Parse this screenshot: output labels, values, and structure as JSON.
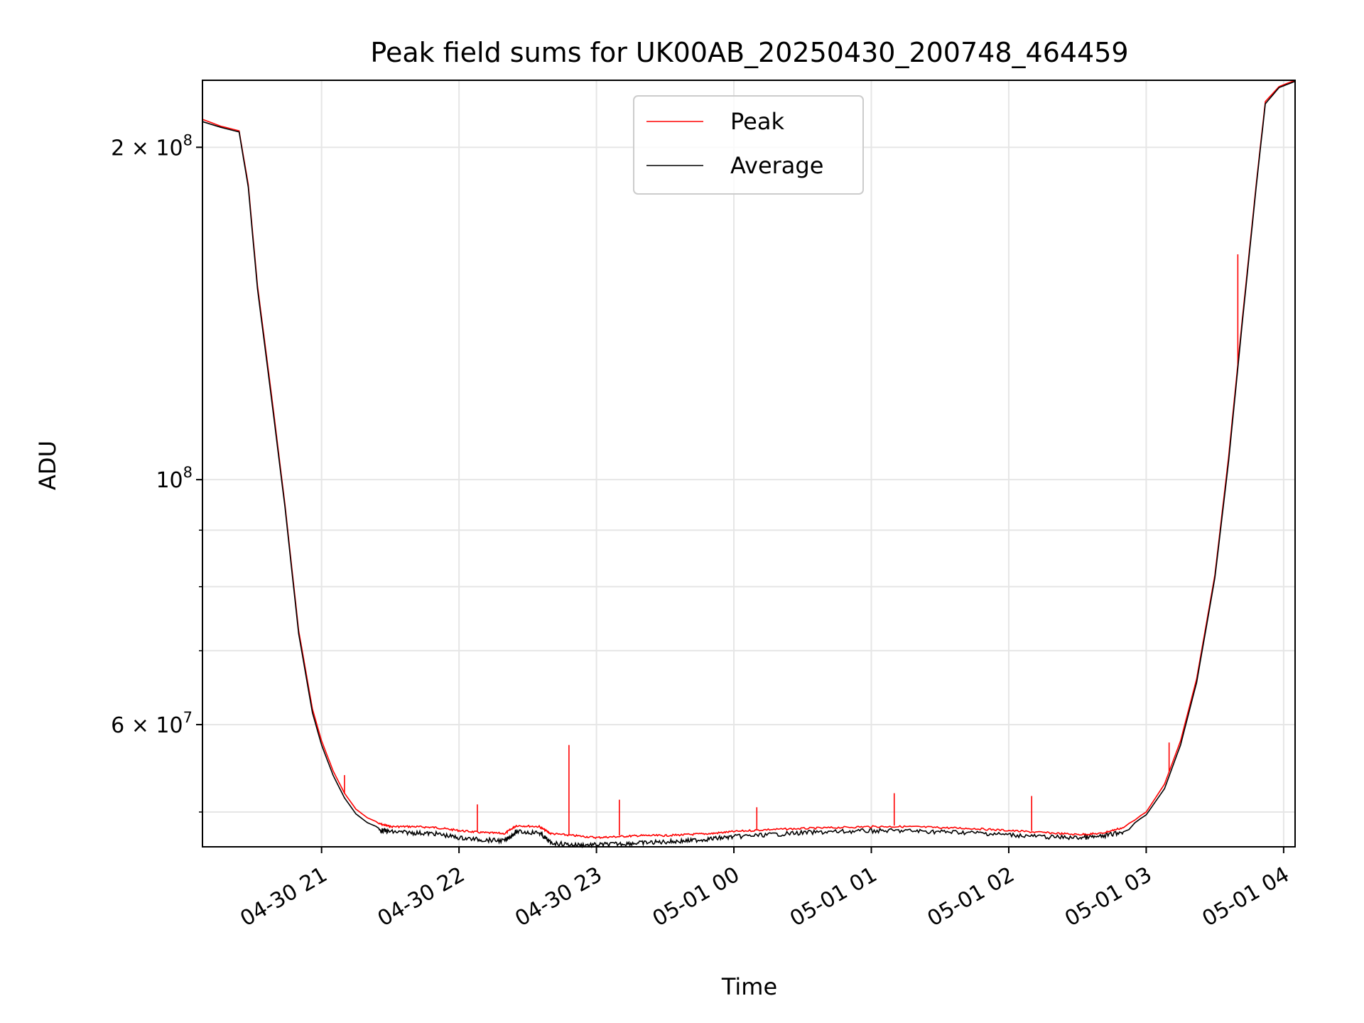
{
  "chart_data": {
    "type": "line",
    "title": "Peak field sums for UK00AB_20250430_200748_464459",
    "xlabel": "Time",
    "ylabel": "ADU",
    "y_scale": "log",
    "xlim": [
      "2025-04-30 20:08",
      "2025-05-01 04:05"
    ],
    "ylim": [
      46500000,
      230000000
    ],
    "grid": true,
    "legend": {
      "placement": "upper center"
    },
    "x_ticks": [
      {
        "t": "2025-04-30 21:00",
        "label": "04-30 21"
      },
      {
        "t": "2025-04-30 22:00",
        "label": "04-30 22"
      },
      {
        "t": "2025-04-30 23:00",
        "label": "04-30 23"
      },
      {
        "t": "2025-05-01 00:00",
        "label": "05-01 00"
      },
      {
        "t": "2025-05-01 01:00",
        "label": "05-01 01"
      },
      {
        "t": "2025-05-01 02:00",
        "label": "05-01 02"
      },
      {
        "t": "2025-05-01 03:00",
        "label": "05-01 03"
      },
      {
        "t": "2025-05-01 04:00",
        "label": "05-01 04"
      }
    ],
    "y_ticks_major": [
      {
        "value": 200000000,
        "label": "2 × 10",
        "exp": "8"
      },
      {
        "value": 100000000,
        "label": "10",
        "exp": "8"
      },
      {
        "value": 60000000,
        "label": "6 × 10",
        "exp": "7"
      }
    ],
    "y_ticks_minor": [
      50000000,
      70000000,
      80000000,
      90000000
    ],
    "series": [
      {
        "name": "Peak",
        "color": "#ff0000",
        "points": [
          [
            "2025-04-30 20:08",
            212000000
          ],
          [
            "2025-04-30 20:16",
            209000000
          ],
          [
            "2025-04-30 20:24",
            207000000
          ],
          [
            "2025-04-30 20:28",
            185000000
          ],
          [
            "2025-04-30 20:32",
            150000000
          ],
          [
            "2025-04-30 20:38",
            120000000
          ],
          [
            "2025-04-30 20:44",
            95000000
          ],
          [
            "2025-04-30 20:50",
            73000000
          ],
          [
            "2025-04-30 20:56",
            62000000
          ],
          [
            "2025-04-30 21:00",
            58000000
          ],
          [
            "2025-04-30 21:05",
            54500000
          ],
          [
            "2025-04-30 21:10",
            52000000
          ],
          [
            "2025-04-30 21:15",
            50300000
          ],
          [
            "2025-04-30 21:20",
            49400000
          ],
          [
            "2025-04-30 21:25",
            48900000
          ],
          [
            "2025-04-30 21:30",
            48600000
          ],
          [
            "2025-04-30 21:40",
            48600000
          ],
          [
            "2025-04-30 21:50",
            48500000
          ],
          [
            "2025-04-30 22:00",
            48200000
          ],
          [
            "2025-04-30 22:10",
            48000000
          ],
          [
            "2025-04-30 22:20",
            47900000
          ],
          [
            "2025-04-30 22:25",
            48700000
          ],
          [
            "2025-04-30 22:35",
            48600000
          ],
          [
            "2025-04-30 22:40",
            47900000
          ],
          [
            "2025-04-30 22:50",
            47700000
          ],
          [
            "2025-04-30 23:00",
            47500000
          ],
          [
            "2025-04-30 23:10",
            47600000
          ],
          [
            "2025-04-30 23:20",
            47700000
          ],
          [
            "2025-04-30 23:30",
            47700000
          ],
          [
            "2025-04-30 23:40",
            47800000
          ],
          [
            "2025-04-30 23:50",
            47900000
          ],
          [
            "2025-05-01 00:00",
            48100000
          ],
          [
            "2025-05-01 00:15",
            48300000
          ],
          [
            "2025-05-01 00:30",
            48400000
          ],
          [
            "2025-05-01 00:45",
            48500000
          ],
          [
            "2025-05-01 01:00",
            48600000
          ],
          [
            "2025-05-01 01:15",
            48600000
          ],
          [
            "2025-05-01 01:30",
            48500000
          ],
          [
            "2025-05-01 01:45",
            48400000
          ],
          [
            "2025-05-01 02:00",
            48200000
          ],
          [
            "2025-05-01 02:15",
            48000000
          ],
          [
            "2025-05-01 02:30",
            47800000
          ],
          [
            "2025-05-01 02:40",
            47900000
          ],
          [
            "2025-05-01 02:50",
            48500000
          ],
          [
            "2025-05-01 03:00",
            50000000
          ],
          [
            "2025-05-01 03:08",
            53000000
          ],
          [
            "2025-05-01 03:15",
            58000000
          ],
          [
            "2025-05-01 03:22",
            66000000
          ],
          [
            "2025-05-01 03:30",
            82000000
          ],
          [
            "2025-05-01 03:36",
            105000000
          ],
          [
            "2025-05-01 03:42",
            140000000
          ],
          [
            "2025-05-01 03:48",
            185000000
          ],
          [
            "2025-05-01 03:52",
            220000000
          ],
          [
            "2025-05-01 03:58",
            227000000
          ],
          [
            "2025-05-01 04:05",
            230000000
          ]
        ],
        "spikes": [
          [
            "2025-04-30 21:10",
            54000000
          ],
          [
            "2025-04-30 22:08",
            50800000
          ],
          [
            "2025-04-30 22:48",
            57500000
          ],
          [
            "2025-04-30 23:10",
            51300000
          ],
          [
            "2025-05-01 00:10",
            50500000
          ],
          [
            "2025-05-01 01:10",
            52000000
          ],
          [
            "2025-05-01 02:10",
            51700000
          ],
          [
            "2025-05-01 03:10",
            57800000
          ],
          [
            "2025-05-01 03:40",
            160000000
          ]
        ]
      },
      {
        "name": "Average",
        "color": "#000000",
        "points": [
          [
            "2025-04-30 20:08",
            211000000
          ],
          [
            "2025-04-30 20:16",
            208500000
          ],
          [
            "2025-04-30 20:24",
            206500000
          ],
          [
            "2025-04-30 20:28",
            184000000
          ],
          [
            "2025-04-30 20:32",
            149000000
          ],
          [
            "2025-04-30 20:38",
            119000000
          ],
          [
            "2025-04-30 20:44",
            94500000
          ],
          [
            "2025-04-30 20:50",
            72500000
          ],
          [
            "2025-04-30 20:56",
            61500000
          ],
          [
            "2025-04-30 21:00",
            57500000
          ],
          [
            "2025-04-30 21:05",
            54000000
          ],
          [
            "2025-04-30 21:10",
            51500000
          ],
          [
            "2025-04-30 21:15",
            49800000
          ],
          [
            "2025-04-30 21:20",
            48900000
          ],
          [
            "2025-04-30 21:25",
            48400000
          ],
          [
            "2025-04-30 21:30",
            48200000
          ],
          [
            "2025-04-30 21:40",
            48100000
          ],
          [
            "2025-04-30 21:50",
            48000000
          ],
          [
            "2025-04-30 22:00",
            47600000
          ],
          [
            "2025-04-30 22:10",
            47400000
          ],
          [
            "2025-04-30 22:20",
            47300000
          ],
          [
            "2025-04-30 22:25",
            48200000
          ],
          [
            "2025-04-30 22:35",
            48100000
          ],
          [
            "2025-04-30 22:40",
            47100000
          ],
          [
            "2025-04-30 22:50",
            46900000
          ],
          [
            "2025-04-30 23:00",
            46900000
          ],
          [
            "2025-04-30 23:10",
            47000000
          ],
          [
            "2025-04-30 23:20",
            47100000
          ],
          [
            "2025-04-30 23:30",
            47200000
          ],
          [
            "2025-04-30 23:40",
            47300000
          ],
          [
            "2025-04-30 23:50",
            47500000
          ],
          [
            "2025-05-01 00:00",
            47700000
          ],
          [
            "2025-05-01 00:15",
            47900000
          ],
          [
            "2025-05-01 00:30",
            48100000
          ],
          [
            "2025-05-01 00:45",
            48200000
          ],
          [
            "2025-05-01 01:00",
            48300000
          ],
          [
            "2025-05-01 01:15",
            48300000
          ],
          [
            "2025-05-01 01:30",
            48200000
          ],
          [
            "2025-05-01 01:45",
            48100000
          ],
          [
            "2025-05-01 02:00",
            47900000
          ],
          [
            "2025-05-01 02:15",
            47700000
          ],
          [
            "2025-05-01 02:30",
            47600000
          ],
          [
            "2025-05-01 02:40",
            47700000
          ],
          [
            "2025-05-01 02:50",
            48200000
          ],
          [
            "2025-05-01 03:00",
            49700000
          ],
          [
            "2025-05-01 03:08",
            52500000
          ],
          [
            "2025-05-01 03:15",
            57500000
          ],
          [
            "2025-05-01 03:22",
            65500000
          ],
          [
            "2025-05-01 03:30",
            81500000
          ],
          [
            "2025-05-01 03:36",
            104000000
          ],
          [
            "2025-05-01 03:42",
            139000000
          ],
          [
            "2025-05-01 03:48",
            184000000
          ],
          [
            "2025-05-01 03:52",
            219000000
          ],
          [
            "2025-05-01 03:58",
            226500000
          ],
          [
            "2025-05-01 04:05",
            229500000
          ]
        ],
        "spikes": []
      }
    ]
  }
}
